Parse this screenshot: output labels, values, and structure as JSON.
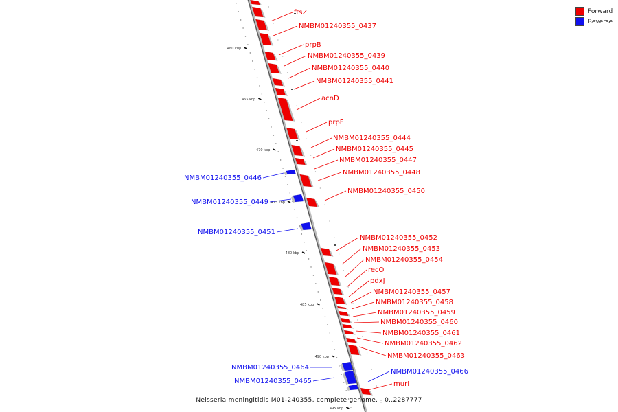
{
  "colors": {
    "forward": "#ee0000",
    "reverse": "#1010ee",
    "axis": "#888888"
  },
  "legend": [
    {
      "label": "Forward",
      "color": "#ee0000"
    },
    {
      "label": "Reverse",
      "color": "#1010ee"
    }
  ],
  "caption": "Neisseria meningitidis M01-240355, complete genome. - 0..2287777",
  "axis": {
    "ticks": [
      "460 kbp",
      "465 kbp",
      "470 kbp",
      "475 kbp",
      "480 kbp",
      "485 kbp",
      "490 kbp",
      "495 kbp"
    ]
  },
  "genes": [
    {
      "name": "ftsZ",
      "strand": "forward"
    },
    {
      "name": "NMBM01240355_0437",
      "strand": "forward"
    },
    {
      "name": "prpB",
      "strand": "forward"
    },
    {
      "name": "NMBM01240355_0439",
      "strand": "forward"
    },
    {
      "name": "NMBM01240355_0440",
      "strand": "forward"
    },
    {
      "name": "NMBM01240355_0441",
      "strand": "forward"
    },
    {
      "name": "acnD",
      "strand": "forward"
    },
    {
      "name": "prpF",
      "strand": "forward"
    },
    {
      "name": "NMBM01240355_0444",
      "strand": "forward"
    },
    {
      "name": "NMBM01240355_0445",
      "strand": "forward"
    },
    {
      "name": "NMBM01240355_0447",
      "strand": "forward"
    },
    {
      "name": "NMBM01240355_0448",
      "strand": "forward"
    },
    {
      "name": "NMBM01240355_0450",
      "strand": "forward"
    },
    {
      "name": "NMBM01240355_0452",
      "strand": "forward"
    },
    {
      "name": "NMBM01240355_0453",
      "strand": "forward"
    },
    {
      "name": "NMBM01240355_0454",
      "strand": "forward"
    },
    {
      "name": "recO",
      "strand": "forward"
    },
    {
      "name": "pdxJ",
      "strand": "forward"
    },
    {
      "name": "NMBM01240355_0457",
      "strand": "forward"
    },
    {
      "name": "NMBM01240355_0458",
      "strand": "forward"
    },
    {
      "name": "NMBM01240355_0459",
      "strand": "forward"
    },
    {
      "name": "NMBM01240355_0460",
      "strand": "forward"
    },
    {
      "name": "NMBM01240355_0461",
      "strand": "forward"
    },
    {
      "name": "NMBM01240355_0462",
      "strand": "forward"
    },
    {
      "name": "NMBM01240355_0463",
      "strand": "forward"
    },
    {
      "name": "murI",
      "strand": "forward"
    },
    {
      "name": "NMBM01240355_0446",
      "strand": "reverse"
    },
    {
      "name": "NMBM01240355_0449",
      "strand": "reverse"
    },
    {
      "name": "NMBM01240355_0451",
      "strand": "reverse"
    },
    {
      "name": "NMBM01240355_0464",
      "strand": "reverse"
    },
    {
      "name": "NMBM01240355_0465",
      "strand": "reverse"
    },
    {
      "name": "NMBM01240355_0466",
      "strand": "reverse"
    }
  ]
}
